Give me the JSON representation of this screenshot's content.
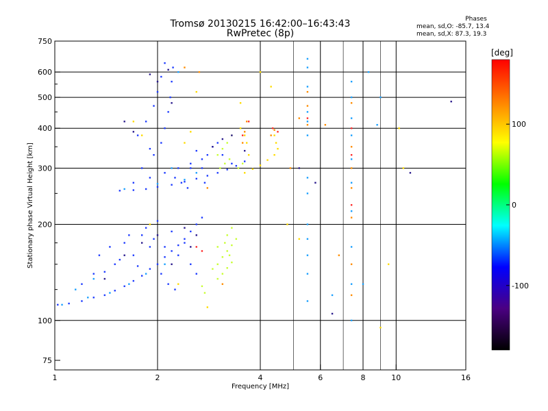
{
  "title_line1": "Tromsø 20130215 16:42:00–16:43:43",
  "title_line2": "RwPretec (8p)",
  "phases": {
    "heading": "Phases",
    "o_line": "mean, sd,O: -85.7, 13.4",
    "x_line": "mean, sd,X:  87.3, 19.3"
  },
  "chart_data": {
    "type": "scatter",
    "xlabel": "Frequency [MHz]",
    "ylabel": "Stationary phase Virtual Height [km]",
    "xscale": "log",
    "yscale": "log",
    "xlim": [
      1,
      16
    ],
    "ylim": [
      70,
      750
    ],
    "xticks": [
      1,
      2,
      4,
      6,
      8,
      10,
      16
    ],
    "xtick_labels": [
      "1",
      "2",
      "4",
      "6",
      "8",
      "10",
      "16"
    ],
    "xgrid": [
      2,
      4,
      6,
      8,
      10
    ],
    "xminor": [
      5,
      7,
      9
    ],
    "yticks": [
      75,
      100,
      200,
      300,
      400,
      500,
      600,
      750
    ],
    "ytick_labels": [
      "75",
      "100",
      "200",
      "300",
      "400",
      "500",
      "600",
      "750"
    ],
    "ygrid": [
      100,
      200,
      300,
      400,
      500,
      600
    ],
    "yminor": [
      125,
      150,
      175,
      250,
      350,
      450,
      550
    ],
    "colorbar": {
      "label": "[deg]",
      "range": [
        -180,
        180
      ],
      "ticks": [
        100,
        0,
        -100
      ],
      "tick_labels": [
        "100",
        "0",
        "-100"
      ],
      "colors": [
        "#ff0000",
        "#ff8000",
        "#ffff00",
        "#00ff00",
        "#00ffff",
        "#0000ff",
        "#4b0082",
        "#000000"
      ]
    },
    "series": [
      {
        "color": "#1e3cff",
        "points": [
          [
            1.02,
            112
          ],
          [
            1.1,
            113
          ],
          [
            1.2,
            115
          ],
          [
            1.3,
            118
          ],
          [
            1.4,
            120
          ],
          [
            1.5,
            124
          ],
          [
            1.6,
            128
          ],
          [
            1.7,
            133
          ],
          [
            1.8,
            138
          ],
          [
            1.9,
            145
          ],
          [
            2.0,
            150
          ],
          [
            2.1,
            158
          ],
          [
            2.2,
            165
          ],
          [
            2.3,
            172
          ],
          [
            2.4,
            180
          ],
          [
            2.5,
            190
          ],
          [
            2.6,
            200
          ],
          [
            2.7,
            210
          ],
          [
            1.3,
            140
          ],
          [
            1.5,
            150
          ],
          [
            1.7,
            160
          ],
          [
            1.9,
            170
          ],
          [
            1.6,
            175
          ],
          [
            1.8,
            185
          ],
          [
            1.2,
            130
          ],
          [
            1.4,
            142
          ],
          [
            1.35,
            160
          ],
          [
            1.55,
            155
          ],
          [
            1.75,
            148
          ],
          [
            2.05,
            140
          ],
          [
            2.15,
            130
          ],
          [
            2.25,
            125
          ],
          [
            1.95,
            180
          ],
          [
            2.1,
            170
          ],
          [
            2.3,
            160
          ],
          [
            2.5,
            150
          ],
          [
            2.6,
            140
          ],
          [
            1.45,
            170
          ],
          [
            1.65,
            185
          ],
          [
            1.85,
            195
          ],
          [
            2.0,
            205
          ],
          [
            2.2,
            190
          ],
          [
            2.4,
            175
          ]
        ]
      },
      {
        "color": "#1e3cff",
        "points": [
          [
            1.55,
            255
          ],
          [
            1.7,
            256
          ],
          [
            1.85,
            258
          ],
          [
            2.0,
            262
          ],
          [
            2.2,
            266
          ],
          [
            2.4,
            272
          ],
          [
            2.6,
            278
          ],
          [
            2.8,
            284
          ],
          [
            3.0,
            290
          ],
          [
            3.2,
            297
          ],
          [
            3.4,
            305
          ],
          [
            3.6,
            315
          ],
          [
            1.7,
            270
          ],
          [
            1.9,
            280
          ],
          [
            2.1,
            290
          ],
          [
            2.3,
            300
          ],
          [
            2.5,
            310
          ],
          [
            2.7,
            320
          ],
          [
            1.8,
            300
          ],
          [
            1.95,
            330
          ],
          [
            2.05,
            360
          ],
          [
            2.1,
            400
          ],
          [
            2.15,
            450
          ],
          [
            2.18,
            500
          ],
          [
            2.2,
            560
          ],
          [
            2.22,
            620
          ],
          [
            2.1,
            640
          ],
          [
            2.05,
            580
          ],
          [
            2.0,
            520
          ],
          [
            1.95,
            470
          ],
          [
            1.85,
            420
          ],
          [
            1.75,
            380
          ],
          [
            1.9,
            345
          ],
          [
            2.25,
            280
          ],
          [
            2.35,
            270
          ],
          [
            2.5,
            300
          ],
          [
            2.6,
            340
          ],
          [
            2.7,
            300
          ],
          [
            2.8,
            330
          ],
          [
            2.9,
            350
          ],
          [
            3.0,
            360
          ],
          [
            3.1,
            330
          ],
          [
            3.3,
            310
          ],
          [
            2.75,
            270
          ],
          [
            2.45,
            260
          ]
        ]
      },
      {
        "color": "#1aa0ff",
        "points": [
          [
            1.05,
            112
          ],
          [
            1.25,
            118
          ],
          [
            1.45,
            122
          ],
          [
            1.65,
            130
          ],
          [
            1.85,
            140
          ],
          [
            2.1,
            150
          ],
          [
            1.6,
            258
          ],
          [
            2.0,
            268
          ],
          [
            2.4,
            276
          ],
          [
            2.2,
            300
          ],
          [
            2.6,
            290
          ],
          [
            1.15,
            125
          ],
          [
            1.3,
            135
          ],
          [
            2.3,
            600
          ],
          [
            7.4,
            560
          ],
          [
            7.4,
            500
          ],
          [
            7.4,
            430
          ],
          [
            7.4,
            380
          ],
          [
            7.4,
            320
          ],
          [
            7.4,
            270
          ],
          [
            7.4,
            220
          ],
          [
            7.4,
            170
          ],
          [
            7.4,
            130
          ],
          [
            7.4,
            100
          ],
          [
            5.5,
            660
          ],
          [
            5.5,
            620
          ],
          [
            5.5,
            540
          ],
          [
            5.5,
            450
          ],
          [
            5.5,
            420
          ],
          [
            5.5,
            380
          ],
          [
            5.5,
            280
          ],
          [
            5.5,
            250
          ],
          [
            5.5,
            200
          ],
          [
            5.5,
            180
          ],
          [
            5.5,
            160
          ],
          [
            5.5,
            140
          ],
          [
            5.5,
            115
          ],
          [
            8.3,
            600
          ],
          [
            9.0,
            500
          ],
          [
            8.8,
            410
          ],
          [
            8.0,
            130
          ],
          [
            6.5,
            120
          ]
        ]
      },
      {
        "color": "#c8ff32",
        "points": [
          [
            3.0,
            150
          ],
          [
            3.1,
            158
          ],
          [
            3.2,
            165
          ],
          [
            3.3,
            172
          ],
          [
            3.4,
            180
          ],
          [
            3.1,
            140
          ],
          [
            3.2,
            146
          ],
          [
            3.3,
            152
          ],
          [
            3.0,
            135
          ],
          [
            2.9,
            145
          ],
          [
            3.15,
            175
          ],
          [
            3.25,
            160
          ],
          [
            2.7,
            128
          ],
          [
            2.75,
            122
          ],
          [
            3.05,
            300
          ],
          [
            3.15,
            310
          ],
          [
            3.25,
            320
          ],
          [
            3.0,
            330
          ],
          [
            3.1,
            345
          ],
          [
            3.2,
            360
          ],
          [
            3.3,
            380
          ],
          [
            3.45,
            300
          ],
          [
            3.55,
            310
          ],
          [
            3.0,
            170
          ],
          [
            3.2,
            185
          ],
          [
            3.3,
            195
          ]
        ]
      },
      {
        "color": "#ffdc00",
        "points": [
          [
            3.6,
            290
          ],
          [
            3.8,
            298
          ],
          [
            4.0,
            306
          ],
          [
            4.2,
            318
          ],
          [
            4.4,
            330
          ],
          [
            4.5,
            345
          ],
          [
            4.45,
            360
          ],
          [
            4.4,
            380
          ],
          [
            4.35,
            400
          ],
          [
            3.7,
            330
          ],
          [
            3.65,
            360
          ],
          [
            3.6,
            380
          ],
          [
            3.5,
            400
          ],
          [
            2.4,
            360
          ],
          [
            2.5,
            390
          ],
          [
            2.6,
            520
          ],
          [
            1.7,
            420
          ],
          [
            1.8,
            380
          ],
          [
            1.9,
            200
          ],
          [
            2.3,
            130
          ],
          [
            2.8,
            110
          ],
          [
            3.5,
            480
          ],
          [
            4.0,
            600
          ],
          [
            4.3,
            540
          ],
          [
            4.8,
            200
          ],
          [
            5.2,
            180
          ],
          [
            9.5,
            150
          ],
          [
            10.2,
            400
          ],
          [
            10.5,
            300
          ],
          [
            9.0,
            95
          ]
        ]
      },
      {
        "color": "#ff8c00",
        "points": [
          [
            3.55,
            360
          ],
          [
            3.6,
            390
          ],
          [
            3.65,
            420
          ],
          [
            4.3,
            380
          ],
          [
            4.4,
            395
          ],
          [
            4.9,
            300
          ],
          [
            5.2,
            430
          ],
          [
            5.5,
            410
          ],
          [
            5.5,
            470
          ],
          [
            5.5,
            520
          ],
          [
            7.4,
            480
          ],
          [
            7.4,
            350
          ],
          [
            7.4,
            300
          ],
          [
            7.4,
            260
          ],
          [
            7.4,
            210
          ],
          [
            7.4,
            150
          ],
          [
            7.4,
            120
          ],
          [
            6.8,
            160
          ],
          [
            6.2,
            410
          ],
          [
            2.4,
            620
          ],
          [
            2.65,
            600
          ],
          [
            3.1,
            130
          ],
          [
            2.8,
            260
          ]
        ]
      },
      {
        "color": "#ff2a2a",
        "points": [
          [
            2.6,
            170
          ],
          [
            2.7,
            165
          ],
          [
            3.55,
            380
          ],
          [
            4.35,
            400
          ],
          [
            5.5,
            430
          ],
          [
            7.4,
            400
          ],
          [
            7.4,
            330
          ],
          [
            7.4,
            230
          ],
          [
            3.7,
            420
          ],
          [
            4.5,
            390
          ]
        ]
      },
      {
        "color": "#2a1a8c",
        "points": [
          [
            1.4,
            135
          ],
          [
            1.6,
            160
          ],
          [
            1.8,
            175
          ],
          [
            2.0,
            185
          ],
          [
            2.2,
            150
          ],
          [
            2.4,
            195
          ],
          [
            2.5,
            170
          ],
          [
            2.6,
            185
          ],
          [
            1.9,
            590
          ],
          [
            2.0,
            560
          ],
          [
            2.15,
            610
          ],
          [
            2.2,
            480
          ],
          [
            1.6,
            420
          ],
          [
            1.7,
            390
          ],
          [
            2.9,
            350
          ],
          [
            3.1,
            370
          ],
          [
            3.3,
            380
          ],
          [
            3.6,
            340
          ],
          [
            5.2,
            300
          ],
          [
            5.8,
            270
          ],
          [
            6.5,
            105
          ],
          [
            14.5,
            485
          ],
          [
            11.0,
            290
          ]
        ]
      }
    ]
  }
}
